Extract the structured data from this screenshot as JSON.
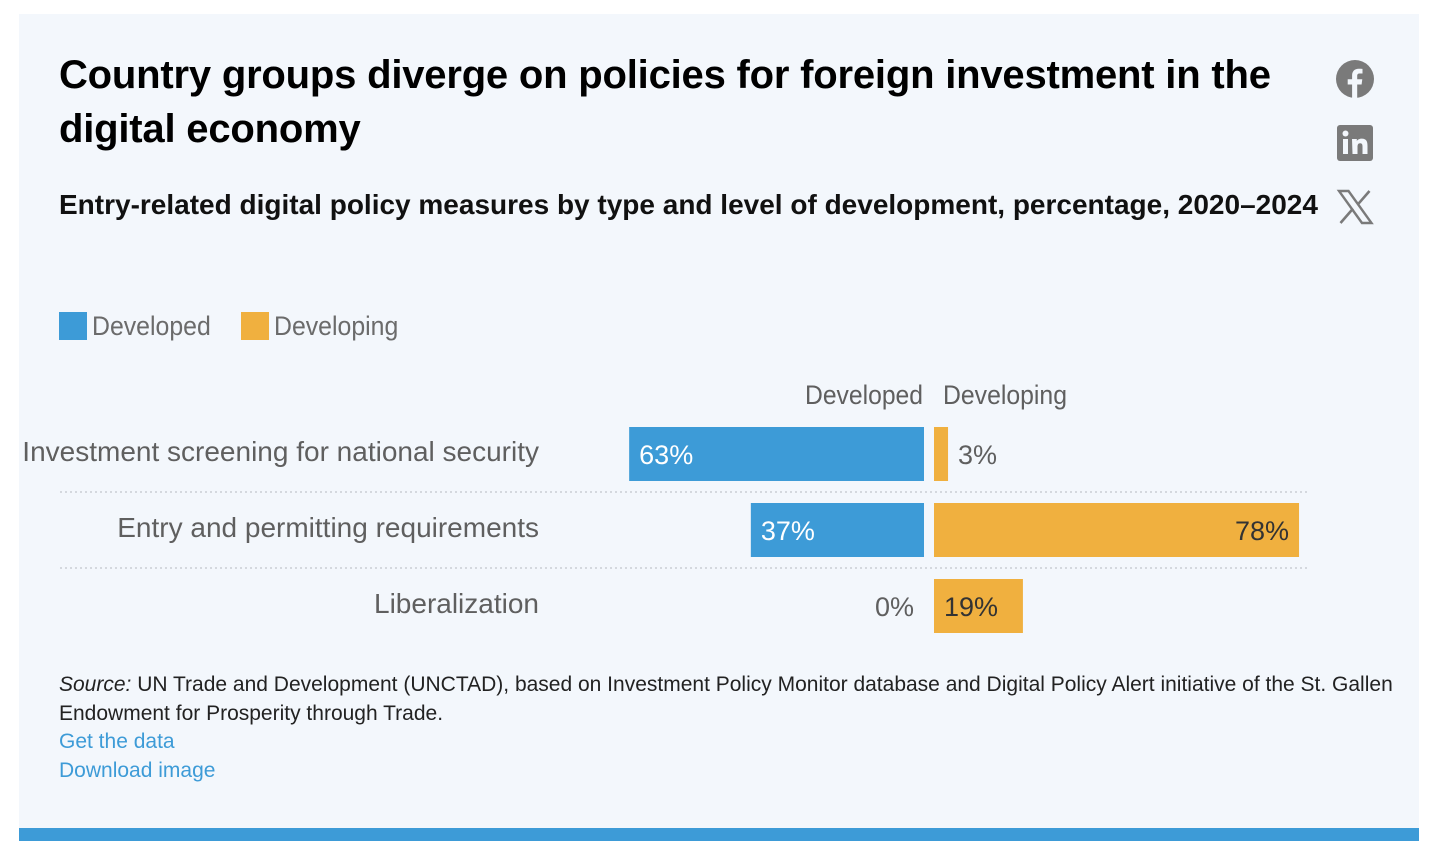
{
  "title": "Country groups diverge on policies for foreign investment in the digital economy",
  "subtitle": "Entry-related digital policy measures by type and level of development, percentage, 2020–2024",
  "social": {
    "facebook_icon": "facebook-icon",
    "linkedin_icon": "linkedin-icon",
    "x_icon": "x-icon"
  },
  "legend": [
    {
      "label": "Developed",
      "color": "#3d9bd7"
    },
    {
      "label": "Developing",
      "color": "#f0b03f"
    }
  ],
  "chart_data": {
    "type": "bar",
    "orientation": "horizontal-diverging",
    "column_headers": [
      "Developed",
      "Developing"
    ],
    "categories": [
      "Investment screening for national security",
      "Entry and permitting requirements",
      "Liberalization"
    ],
    "series": [
      {
        "name": "Developed",
        "color": "#3d9bd7",
        "values": [
          63,
          37,
          0
        ],
        "labels": [
          "63%",
          "37%",
          "0%"
        ]
      },
      {
        "name": "Developing",
        "color": "#f0b03f",
        "values": [
          3,
          78,
          19
        ],
        "labels": [
          "3%",
          "78%",
          "19%"
        ]
      }
    ],
    "xlim": [
      0,
      100
    ],
    "grid": false,
    "row_separators": "dotted",
    "legend_position": "top-left"
  },
  "source": {
    "label": "Source:",
    "text": " UN Trade and Development (UNCTAD), based on Investment Policy Monitor database and Digital Policy Alert initiative of the St. Gallen Endowment for Prosperity through Trade."
  },
  "links": {
    "get_data": "Get the data",
    "download_image": "Download image"
  }
}
